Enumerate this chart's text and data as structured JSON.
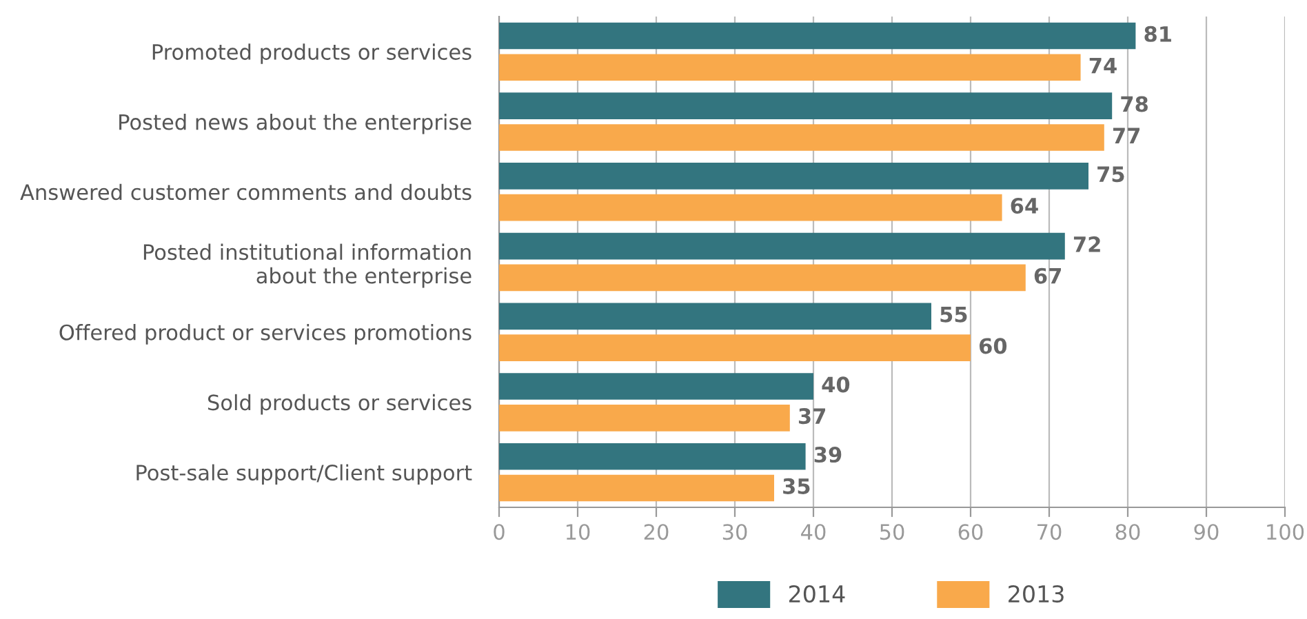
{
  "chart_data": {
    "type": "bar",
    "orientation": "horizontal",
    "categories": [
      "Promoted products or services",
      "Posted news about the enterprise",
      "Answered customer comments and doubts",
      "Posted institutional information\nabout the enterprise",
      "Offered product or services promotions",
      "Sold products or services",
      "Post-sale support/Client support"
    ],
    "series": [
      {
        "name": "2014",
        "color": "#33757f",
        "values": [
          81,
          78,
          75,
          72,
          55,
          40,
          39
        ]
      },
      {
        "name": "2013",
        "color": "#f9a94b",
        "values": [
          74,
          77,
          64,
          67,
          60,
          37,
          35
        ]
      }
    ],
    "xlim": [
      0,
      100
    ],
    "xticks": [
      0,
      10,
      20,
      30,
      40,
      50,
      60,
      70,
      80,
      90,
      100
    ],
    "grid": "x",
    "legend": "bottom",
    "data_labels": true
  }
}
